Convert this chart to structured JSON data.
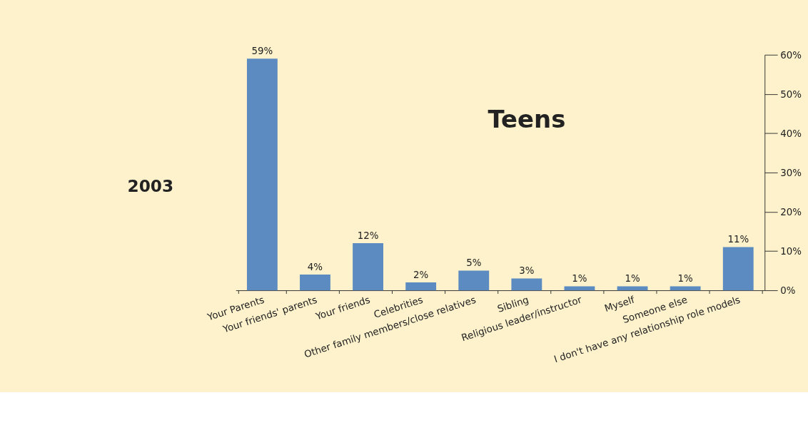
{
  "chart_data": {
    "type": "bar",
    "title": "Teens",
    "subtitle": "2003",
    "categories": [
      "Your Parents",
      "Your friends' parents",
      "Your friends",
      "Celebrities",
      "Other family members/close relatives",
      "Sibling",
      "Religious leader/instructor",
      "Myself",
      "Someone else",
      "I don't have any relationship role models"
    ],
    "values": [
      59,
      4,
      12,
      2,
      5,
      3,
      1,
      1,
      1,
      11
    ],
    "value_labels": [
      "59%",
      "4%",
      "12%",
      "2%",
      "5%",
      "3%",
      "1%",
      "1%",
      "1%",
      "11%"
    ],
    "color": "#5b8bc0",
    "ylim": [
      0,
      60
    ],
    "yticks": [
      {
        "value": 0,
        "label": "0%"
      },
      {
        "value": 10,
        "label": "10%"
      },
      {
        "value": 20,
        "label": "20%"
      },
      {
        "value": 30,
        "label": "30%"
      },
      {
        "value": 40,
        "label": "40%"
      },
      {
        "value": 50,
        "label": "50%"
      },
      {
        "value": 60,
        "label": "60%"
      }
    ],
    "grid": false
  }
}
